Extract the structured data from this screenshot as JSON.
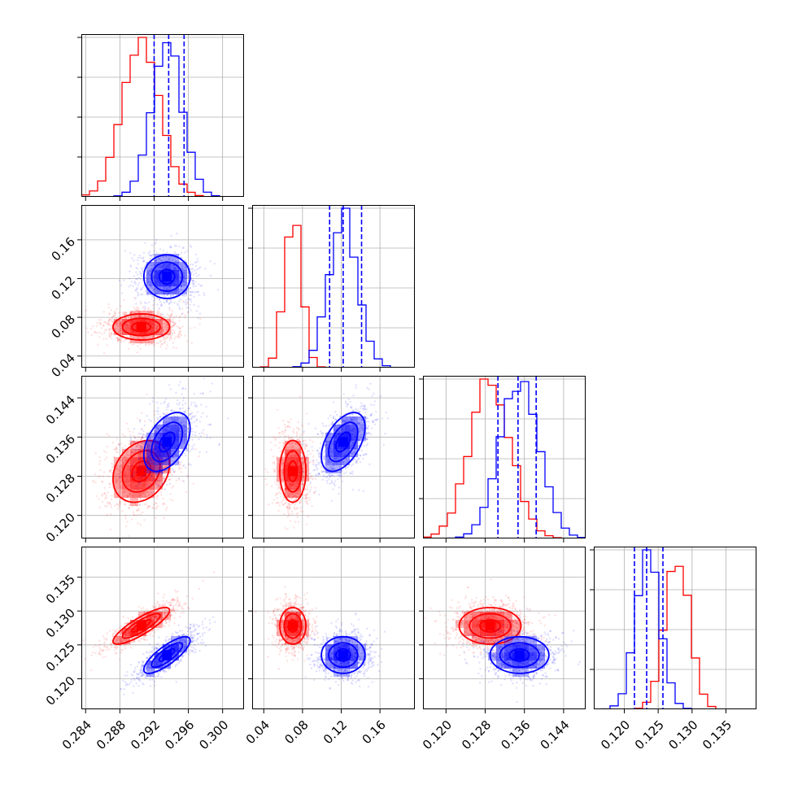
{
  "chart_data": {
    "type": "corner",
    "grid": true,
    "colors": {
      "red": "#ff0000",
      "blue": "#0000ff"
    },
    "params": [
      {
        "range": [
          0.2835,
          0.3025
        ],
        "ticks": [
          0.284,
          0.288,
          0.292,
          0.296,
          0.3
        ],
        "tick_labels": [
          "0.284",
          "0.288",
          "0.292",
          "0.296",
          "0.300"
        ]
      },
      {
        "range": [
          0.028,
          0.196
        ],
        "ticks": [
          0.04,
          0.08,
          0.12,
          0.16
        ],
        "tick_labels": [
          "0.04",
          "0.08",
          "0.12",
          "0.16"
        ]
      },
      {
        "range": [
          0.1153,
          0.1485
        ],
        "ticks": [
          0.12,
          0.128,
          0.136,
          0.144
        ],
        "tick_labels": [
          "0.120",
          "0.128",
          "0.136",
          "0.144"
        ]
      },
      {
        "range": [
          0.1155,
          0.1395
        ],
        "ticks": [
          0.12,
          0.125,
          0.13,
          0.135
        ],
        "tick_labels": [
          "0.120",
          "0.125",
          "0.130",
          "0.135"
        ]
      }
    ],
    "series": [
      {
        "color": "#ff0000",
        "mean": [
          0.2905,
          0.07,
          0.129,
          0.1278
        ],
        "sigma": [
          0.0022,
          0.009,
          0.0042,
          0.0018
        ],
        "corr": [
          [
            1,
            0,
            0.25,
            0.85
          ],
          [
            0,
            1,
            0,
            0
          ],
          [
            0.25,
            0,
            1,
            0
          ],
          [
            0.85,
            0,
            0,
            1
          ]
        ]
      },
      {
        "color": "#0000ff",
        "mean": [
          0.2935,
          0.122,
          0.135,
          0.1235
        ],
        "sigma": [
          0.0018,
          0.015,
          0.004,
          0.0018
        ],
        "corr": [
          [
            1,
            0,
            0.45,
            0.8
          ],
          [
            0,
            1,
            0.5,
            0
          ],
          [
            0.45,
            0.5,
            1,
            0
          ],
          [
            0.8,
            0,
            0,
            1
          ]
        ]
      }
    ],
    "quantile_lines": {
      "color": "#0000ff",
      "values": [
        [
          0.292,
          0.2937,
          0.2955
        ],
        [
          0.108,
          0.122,
          0.141
        ],
        [
          0.1306,
          0.1347,
          0.1384
        ],
        [
          0.1215,
          0.1233,
          0.1257
        ]
      ]
    }
  }
}
